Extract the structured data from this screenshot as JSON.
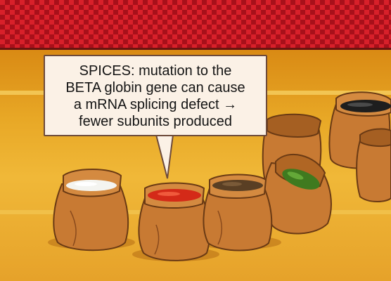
{
  "callout": {
    "lines": [
      "SPICES: mutation to the",
      "BETA globin gene can cause",
      "a mRNA splicing defect →",
      "fewer subunits produced"
    ]
  },
  "colors": {
    "awning_red": "#d8202a",
    "awning_dark": "#a8101a",
    "background_gold": "#e8a826",
    "sack_brown": "#c87a33",
    "callout_fill": "#fbf1e6"
  },
  "sacks": [
    {
      "name": "white-spice-sack",
      "contents": "white spice",
      "color": "#f4f4f0"
    },
    {
      "name": "red-spice-sack",
      "contents": "red spice",
      "color": "#d42a18"
    },
    {
      "name": "brown-spice-sack",
      "contents": "brown spice",
      "color": "#5a3f24"
    },
    {
      "name": "green-spice-sack",
      "contents": "green spice",
      "color": "#3f7a1f"
    },
    {
      "name": "black-spice-sack",
      "contents": "black spice",
      "color": "#1e1e1e"
    },
    {
      "name": "empty-sack",
      "contents": "empty",
      "color": "#c87a33"
    }
  ]
}
